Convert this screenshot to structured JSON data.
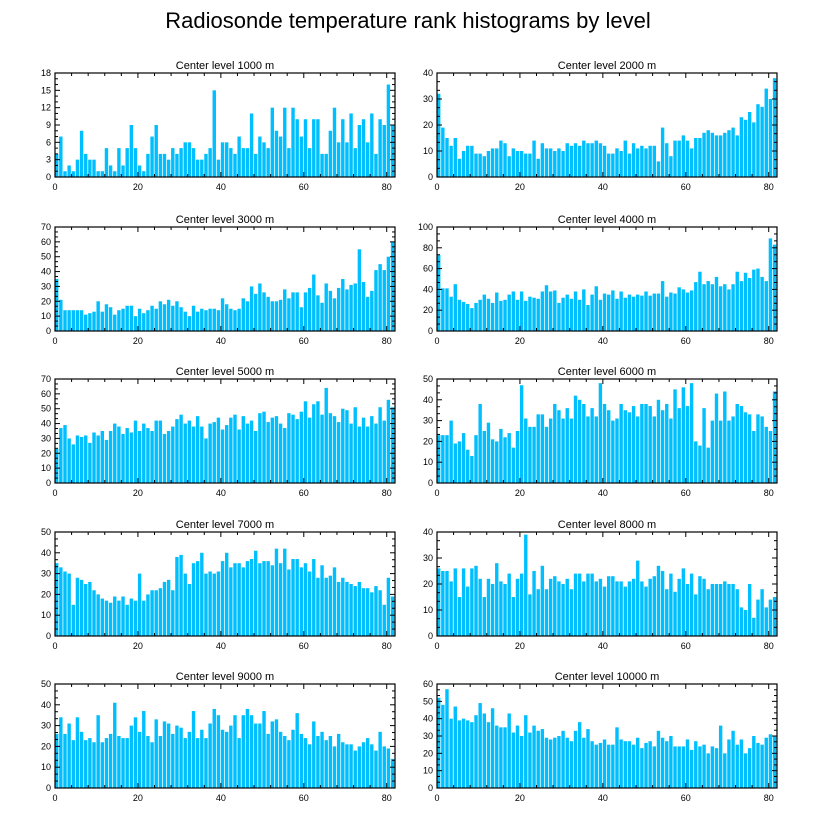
{
  "title": "Radiosonde temperature rank histograms by level",
  "bar_color": "#00bfff",
  "chart_data": [
    {
      "type": "bar",
      "title": "Center level 1000 m",
      "xlim": [
        0,
        82
      ],
      "ylim": [
        0,
        18
      ],
      "xticks": [
        0,
        20,
        40,
        60,
        80
      ],
      "yticks": [
        0,
        3,
        6,
        9,
        12,
        15,
        18
      ],
      "values": [
        4,
        7,
        1,
        2,
        1,
        3,
        8,
        4,
        3,
        3,
        1,
        1,
        5,
        2,
        1,
        5,
        2,
        5,
        9,
        5,
        2,
        1,
        4,
        7,
        9,
        4,
        4,
        3,
        5,
        4,
        5,
        6,
        6,
        5,
        3,
        3,
        4,
        5,
        15,
        3,
        6,
        6,
        5,
        4,
        7,
        5,
        5,
        11,
        4,
        7,
        6,
        5,
        12,
        8,
        7,
        12,
        5,
        12,
        10,
        7,
        10,
        5,
        10,
        10,
        4,
        4,
        8,
        12,
        6,
        10,
        6,
        11,
        5,
        9,
        10,
        6,
        11,
        4,
        10,
        9,
        16,
        9
      ]
    },
    {
      "type": "bar",
      "title": "Center level 2000 m",
      "xlim": [
        0,
        82
      ],
      "ylim": [
        0,
        40
      ],
      "xticks": [
        0,
        20,
        40,
        60,
        80
      ],
      "yticks": [
        0,
        10,
        20,
        30,
        40
      ],
      "values": [
        32,
        19,
        15,
        12,
        15,
        7,
        10,
        12,
        12,
        9,
        9,
        8,
        10,
        11,
        11,
        14,
        13,
        8,
        11,
        10,
        10,
        9,
        9,
        14,
        7,
        13,
        11,
        11,
        10,
        11,
        10,
        13,
        12,
        13,
        12,
        14,
        13,
        13,
        14,
        13,
        12,
        9,
        9,
        11,
        10,
        14,
        9,
        13,
        11,
        12,
        11,
        12,
        12,
        6,
        19,
        13,
        8,
        14,
        14,
        16,
        14,
        11,
        15,
        15,
        17,
        18,
        17,
        16,
        16,
        17,
        18,
        19,
        16,
        23,
        22,
        25,
        21,
        28,
        27,
        34,
        30,
        38
      ]
    },
    {
      "type": "bar",
      "title": "Center level 3000 m",
      "xlim": [
        0,
        82
      ],
      "ylim": [
        0,
        70
      ],
      "xticks": [
        0,
        20,
        40,
        60,
        80
      ],
      "yticks": [
        0,
        10,
        20,
        30,
        40,
        50,
        60,
        70
      ],
      "values": [
        35,
        21,
        14,
        14,
        14,
        14,
        14,
        11,
        12,
        13,
        20,
        13,
        18,
        16,
        11,
        14,
        15,
        17,
        17,
        10,
        15,
        12,
        14,
        17,
        15,
        20,
        18,
        21,
        17,
        20,
        16,
        13,
        10,
        17,
        13,
        15,
        14,
        15,
        15,
        14,
        22,
        18,
        15,
        14,
        15,
        22,
        20,
        30,
        25,
        32,
        26,
        23,
        20,
        20,
        21,
        28,
        22,
        26,
        26,
        16,
        26,
        29,
        38,
        24,
        19,
        32,
        27,
        22,
        29,
        35,
        28,
        31,
        32,
        55,
        33,
        23,
        27,
        41,
        45,
        41,
        50,
        60,
        55,
        68
      ]
    },
    {
      "type": "bar",
      "title": "Center level 4000 m",
      "xlim": [
        0,
        82
      ],
      "ylim": [
        0,
        100
      ],
      "xticks": [
        0,
        20,
        40,
        60,
        80
      ],
      "yticks": [
        0,
        20,
        40,
        60,
        80,
        100
      ],
      "values": [
        73,
        41,
        41,
        33,
        45,
        30,
        28,
        26,
        22,
        27,
        30,
        35,
        31,
        27,
        37,
        29,
        30,
        35,
        38,
        30,
        38,
        29,
        33,
        32,
        31,
        38,
        44,
        38,
        39,
        27,
        32,
        35,
        31,
        38,
        30,
        40,
        25,
        35,
        43,
        30,
        36,
        35,
        39,
        31,
        38,
        32,
        35,
        33,
        35,
        34,
        38,
        34,
        36,
        36,
        48,
        33,
        37,
        36,
        42,
        40,
        37,
        39,
        47,
        57,
        45,
        48,
        45,
        52,
        43,
        45,
        40,
        45,
        57,
        48,
        56,
        51,
        59,
        60,
        52,
        48,
        89,
        83
      ]
    },
    {
      "type": "bar",
      "title": "Center level 5000 m",
      "xlim": [
        0,
        82
      ],
      "ylim": [
        0,
        70
      ],
      "xticks": [
        0,
        20,
        40,
        60,
        80
      ],
      "yticks": [
        0,
        10,
        20,
        30,
        40,
        50,
        60,
        70
      ],
      "values": [
        23,
        37,
        39,
        30,
        26,
        32,
        31,
        32,
        27,
        34,
        32,
        35,
        29,
        35,
        40,
        38,
        33,
        37,
        34,
        42,
        35,
        40,
        37,
        35,
        42,
        42,
        33,
        35,
        38,
        43,
        46,
        40,
        42,
        38,
        45,
        38,
        30,
        40,
        41,
        44,
        36,
        39,
        44,
        46,
        36,
        45,
        40,
        42,
        35,
        47,
        48,
        41,
        44,
        45,
        40,
        37,
        47,
        46,
        43,
        48,
        55,
        44,
        53,
        55,
        46,
        64,
        47,
        45,
        41,
        50,
        49,
        40,
        51,
        38,
        44,
        38,
        45,
        40,
        51,
        42,
        56,
        51
      ]
    },
    {
      "type": "bar",
      "title": "Center level 6000 m",
      "xlim": [
        0,
        82
      ],
      "ylim": [
        0,
        50
      ],
      "xticks": [
        0,
        20,
        40,
        60,
        80
      ],
      "yticks": [
        0,
        10,
        20,
        30,
        40,
        50
      ],
      "values": [
        23,
        23,
        23,
        30,
        19,
        20,
        24,
        16,
        13,
        23,
        38,
        25,
        29,
        21,
        20,
        26,
        22,
        24,
        17,
        25,
        47,
        31,
        27,
        27,
        33,
        33,
        27,
        31,
        38,
        35,
        31,
        36,
        31,
        42,
        40,
        38,
        32,
        36,
        32,
        48,
        38,
        35,
        30,
        31,
        38,
        35,
        34,
        37,
        32,
        38,
        38,
        37,
        32,
        40,
        35,
        38,
        31,
        45,
        36,
        46,
        37,
        48,
        20,
        18,
        36,
        17,
        30,
        43,
        30,
        44,
        30,
        32,
        38,
        37,
        34,
        33,
        25,
        33,
        32,
        27,
        25,
        44,
        28,
        26,
        23
      ]
    },
    {
      "type": "bar",
      "title": "Center level 7000 m",
      "xlim": [
        0,
        82
      ],
      "ylim": [
        0,
        50
      ],
      "xticks": [
        0,
        20,
        40,
        60,
        80
      ],
      "yticks": [
        0,
        10,
        20,
        30,
        40,
        50
      ],
      "values": [
        35,
        33,
        31,
        30,
        15,
        28,
        27,
        25,
        26,
        22,
        20,
        18,
        17,
        16,
        19,
        17,
        19,
        15,
        18,
        17,
        30,
        17,
        20,
        22,
        22,
        23,
        26,
        27,
        22,
        38,
        39,
        30,
        25,
        35,
        36,
        40,
        30,
        31,
        30,
        31,
        36,
        40,
        33,
        35,
        35,
        33,
        36,
        37,
        41,
        35,
        36,
        36,
        34,
        42,
        35,
        42,
        32,
        37,
        37,
        33,
        35,
        31,
        37,
        28,
        34,
        28,
        29,
        33,
        26,
        28,
        26,
        25,
        24,
        26,
        23,
        23,
        21,
        24,
        22,
        15,
        28,
        19,
        16,
        17
      ]
    },
    {
      "type": "bar",
      "title": "Center level 8000 m",
      "xlim": [
        0,
        82
      ],
      "ylim": [
        0,
        40
      ],
      "xticks": [
        0,
        20,
        40,
        60,
        80
      ],
      "yticks": [
        0,
        10,
        20,
        30,
        40
      ],
      "values": [
        26,
        25,
        25,
        21,
        26,
        15,
        26,
        19,
        26,
        27,
        22,
        15,
        22,
        20,
        28,
        21,
        20,
        24,
        15,
        22,
        24,
        39,
        16,
        25,
        18,
        27,
        18,
        22,
        23,
        21,
        20,
        22,
        18,
        24,
        24,
        21,
        24,
        24,
        21,
        22,
        19,
        23,
        23,
        21,
        21,
        19,
        21,
        22,
        29,
        21,
        19,
        22,
        23,
        27,
        25,
        18,
        24,
        17,
        22,
        26,
        20,
        24,
        16,
        23,
        22,
        18,
        20,
        20,
        20,
        21,
        20,
        20,
        18,
        11,
        10,
        20,
        7,
        14,
        18,
        11,
        14,
        15,
        18,
        16
      ]
    },
    {
      "type": "bar",
      "title": "Center level 9000 m",
      "xlim": [
        0,
        82
      ],
      "ylim": [
        0,
        50
      ],
      "xticks": [
        0,
        20,
        40,
        60,
        80
      ],
      "yticks": [
        0,
        10,
        20,
        30,
        40,
        50
      ],
      "values": [
        26,
        34,
        26,
        31,
        23,
        34,
        27,
        23,
        24,
        22,
        35,
        22,
        24,
        26,
        41,
        25,
        24,
        24,
        30,
        34,
        27,
        37,
        25,
        22,
        33,
        25,
        32,
        31,
        26,
        30,
        29,
        24,
        27,
        37,
        24,
        28,
        24,
        31,
        38,
        35,
        28,
        27,
        30,
        35,
        24,
        35,
        38,
        35,
        31,
        31,
        37,
        26,
        32,
        33,
        27,
        25,
        23,
        28,
        36,
        26,
        24,
        21,
        32,
        25,
        27,
        23,
        25,
        20,
        26,
        22,
        21,
        21,
        18,
        20,
        22,
        24,
        21,
        18,
        27,
        20,
        19,
        14,
        16,
        10
      ]
    },
    {
      "type": "bar",
      "title": "Center level 10000 m",
      "xlim": [
        0,
        82
      ],
      "ylim": [
        0,
        60
      ],
      "xticks": [
        0,
        20,
        40,
        60,
        80
      ],
      "yticks": [
        0,
        10,
        20,
        30,
        40,
        50,
        60
      ],
      "values": [
        52,
        48,
        57,
        40,
        47,
        39,
        40,
        39,
        38,
        42,
        49,
        43,
        38,
        46,
        36,
        35,
        35,
        43,
        32,
        36,
        30,
        42,
        32,
        36,
        33,
        34,
        29,
        28,
        29,
        30,
        33,
        29,
        27,
        33,
        38,
        29,
        34,
        27,
        25,
        26,
        28,
        25,
        25,
        35,
        28,
        27,
        27,
        25,
        29,
        23,
        26,
        27,
        24,
        33,
        29,
        27,
        30,
        24,
        24,
        24,
        28,
        22,
        27,
        24,
        25,
        20,
        24,
        23,
        36,
        20,
        28,
        33,
        25,
        28,
        20,
        23,
        30,
        26,
        25,
        29,
        31,
        30,
        31
      ]
    }
  ]
}
